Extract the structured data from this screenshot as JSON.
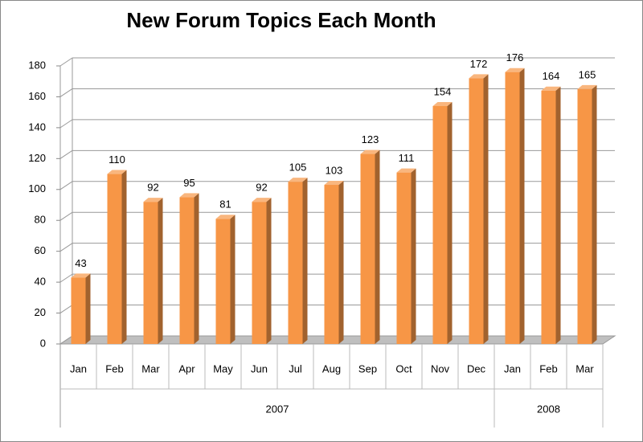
{
  "chart_data": {
    "type": "bar3d",
    "title": "New Forum Topics Each Month",
    "category_groups": [
      {
        "name": "2007",
        "categories": [
          "Jan",
          "Feb",
          "Mar",
          "Apr",
          "May",
          "Jun",
          "Jul",
          "Aug",
          "Sep",
          "Oct",
          "Nov",
          "Dec"
        ]
      },
      {
        "name": "2008",
        "categories": [
          "Jan",
          "Feb",
          "Mar"
        ]
      }
    ],
    "values": [
      43,
      110,
      92,
      95,
      81,
      92,
      105,
      103,
      123,
      111,
      154,
      172,
      176,
      164,
      165
    ],
    "color": "#f79646",
    "ylim": [
      0,
      180
    ],
    "yticks": [
      0,
      20,
      40,
      60,
      80,
      100,
      120,
      140,
      160,
      180
    ],
    "grid": true
  }
}
